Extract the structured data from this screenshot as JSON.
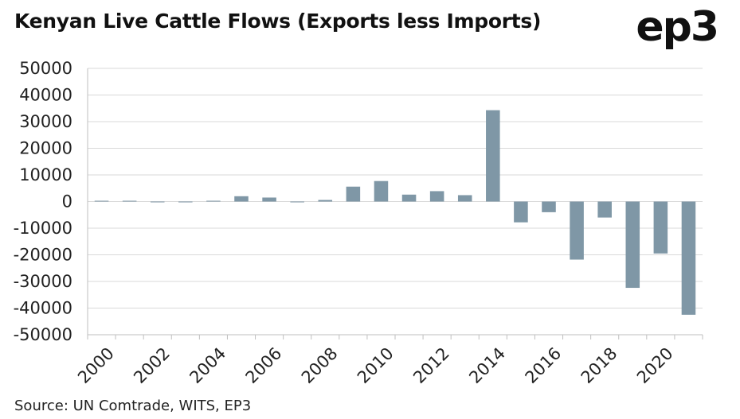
{
  "header": {
    "title": "Kenyan Live Cattle Flows (Exports less Imports)",
    "logo_text": "ep3"
  },
  "footer": {
    "source": "Source: UN Comtrade, WITS, EP3"
  },
  "colors": {
    "bar": "#7f97a6",
    "grid": "#d9d9d9",
    "axis": "#bfbfbf"
  },
  "chart_data": {
    "type": "bar",
    "title": "Kenyan Live Cattle Flows (Exports less Imports)",
    "xlabel": "",
    "ylabel": "",
    "ylim": [
      -50000,
      50000
    ],
    "yticks": [
      50000,
      40000,
      30000,
      20000,
      10000,
      0,
      -10000,
      -20000,
      -30000,
      -40000,
      -50000
    ],
    "categories": [
      "2000",
      "2001",
      "2002",
      "2003",
      "2004",
      "2005",
      "2006",
      "2007",
      "2008",
      "2009",
      "2010",
      "2011",
      "2012",
      "2013",
      "2014",
      "2015",
      "2016",
      "2017",
      "2018",
      "2019",
      "2020",
      "2021"
    ],
    "x_tick_labels": [
      "2000",
      "2002",
      "2004",
      "2006",
      "2008",
      "2010",
      "2012",
      "2014",
      "2016",
      "2018",
      "2020"
    ],
    "values": [
      300,
      300,
      -200,
      -300,
      300,
      2000,
      1500,
      -200,
      600,
      5600,
      7700,
      2600,
      3900,
      2400,
      34300,
      -7800,
      -4000,
      -21800,
      -6000,
      -32400,
      -19500,
      -42500
    ],
    "grid": true,
    "legend": "none"
  }
}
